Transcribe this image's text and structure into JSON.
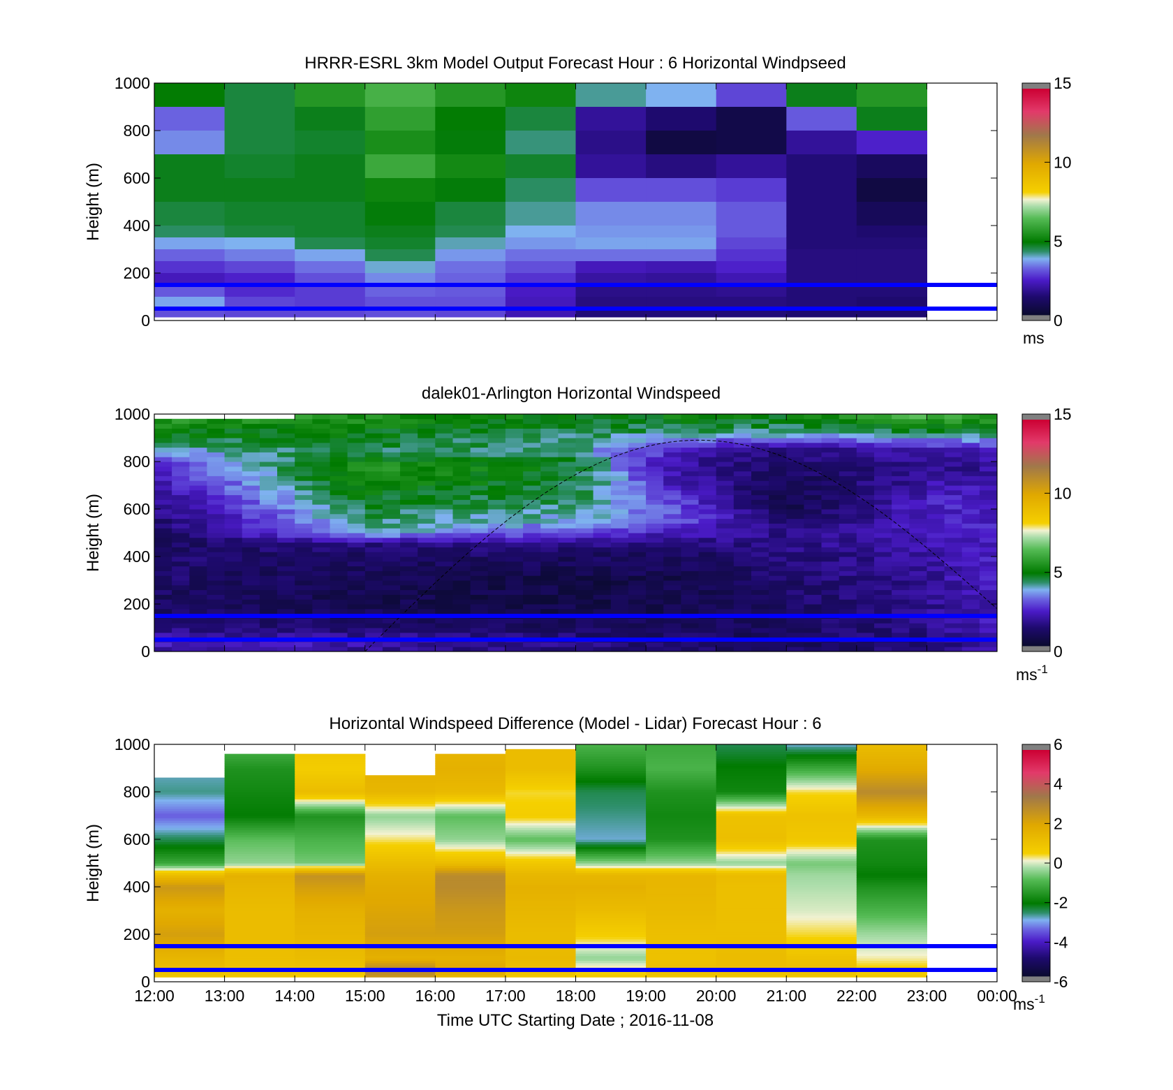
{
  "figure": {
    "xlabel": "Time UTC  Starting Date ; 2016-11-08",
    "xticks": [
      "12:00",
      "13:00",
      "14:00",
      "15:00",
      "16:00",
      "17:00",
      "18:00",
      "19:00",
      "20:00",
      "21:00",
      "22:00",
      "23:00",
      "00:00"
    ]
  },
  "chart_data": [
    {
      "type": "heatmap",
      "title": "HRRR-ESRL 3km Model Output   Forecast Hour : 6 Horizontal Windpseed",
      "ylabel": "Height (m)",
      "ylim": [
        0,
        1000
      ],
      "yticks": [
        "0",
        "200",
        "400",
        "600",
        "800",
        "1000"
      ],
      "colorbar": {
        "ticks": [
          "0",
          "5",
          "10",
          "15"
        ],
        "range": [
          0,
          15
        ],
        "unit": "ms"
      },
      "reference_lines_m": [
        150,
        50
      ],
      "x_hours": [
        12,
        13,
        14,
        15,
        16,
        17,
        18,
        19,
        20,
        21,
        22
      ],
      "height_bins_m": [
        1000,
        900,
        800,
        700,
        600,
        500,
        400,
        350,
        300,
        250,
        200,
        150,
        100,
        50
      ],
      "values": [
        [
          5.0,
          4.6,
          5.6,
          6.2,
          5.6,
          5.2,
          4.2,
          3.9,
          3.0,
          4.8,
          5.6
        ],
        [
          3.3,
          4.6,
          4.8,
          5.8,
          5.0,
          4.6,
          2.0,
          1.5,
          0.8,
          3.2,
          4.8
        ],
        [
          3.6,
          4.6,
          4.7,
          5.4,
          4.9,
          4.3,
          1.8,
          0.7,
          0.8,
          2.0,
          2.6
        ],
        [
          4.8,
          4.7,
          4.8,
          6.0,
          5.3,
          4.7,
          2.0,
          1.7,
          2.0,
          1.6,
          1.2
        ],
        [
          4.8,
          4.8,
          4.8,
          5.2,
          4.9,
          4.4,
          3.1,
          3.1,
          2.9,
          1.6,
          0.7
        ],
        [
          4.6,
          4.7,
          4.7,
          4.9,
          4.6,
          4.2,
          3.6,
          3.6,
          3.2,
          1.6,
          1.1
        ],
        [
          4.4,
          4.6,
          4.7,
          4.8,
          4.5,
          3.9,
          3.7,
          3.7,
          3.2,
          1.6,
          1.5
        ],
        [
          3.8,
          3.9,
          4.5,
          4.7,
          4.1,
          3.7,
          3.8,
          3.8,
          3.0,
          1.6,
          1.6
        ],
        [
          3.3,
          3.5,
          3.8,
          4.5,
          3.7,
          3.4,
          3.4,
          3.4,
          2.8,
          1.7,
          1.7
        ],
        [
          2.8,
          3.0,
          3.4,
          4.0,
          3.4,
          3.1,
          2.4,
          2.3,
          2.6,
          1.7,
          1.7
        ],
        [
          2.4,
          2.6,
          3.1,
          3.6,
          3.3,
          2.8,
          2.1,
          2.0,
          2.3,
          1.7,
          1.7
        ],
        [
          3.2,
          2.7,
          2.9,
          3.3,
          3.2,
          2.5,
          1.8,
          1.8,
          1.9,
          1.6,
          1.6
        ],
        [
          3.8,
          3.0,
          2.9,
          3.1,
          3.1,
          2.4,
          1.7,
          1.7,
          1.7,
          1.6,
          1.5
        ],
        [
          3.1,
          3.0,
          3.0,
          3.1,
          3.0,
          2.3,
          1.6,
          1.6,
          1.6,
          1.5,
          1.5
        ]
      ]
    },
    {
      "type": "heatmap",
      "title": "dalek01-Arlington  Horizontal Windspeed",
      "ylabel": "Height (m)",
      "ylim": [
        0,
        1000
      ],
      "yticks": [
        "0",
        "200",
        "400",
        "600",
        "800",
        "1000"
      ],
      "colorbar": {
        "ticks": [
          "0",
          "5",
          "10",
          "15"
        ],
        "range": [
          0,
          15
        ],
        "unit": "ms-1"
      },
      "reference_lines_m": [
        150,
        50
      ],
      "x_range_hours": [
        12,
        23.9
      ],
      "annotation_curve": {
        "start_x": 15.0,
        "peak_x": 19.75,
        "peak_y_m": 890,
        "end_x": 24.0,
        "end_y_m": 180
      },
      "profile_key_heights_m": [
        1000,
        930,
        850,
        780,
        700,
        620,
        560,
        500,
        450,
        400,
        300,
        200,
        100,
        40,
        0
      ],
      "profile_key_x": [
        12,
        15,
        18,
        19.5,
        21,
        23,
        24
      ],
      "profile_key_values": [
        [
          6.0,
          5.0,
          4.0,
          2.6,
          2.2,
          1.8,
          1.5,
          1.2,
          1.3,
          1.5,
          1.4,
          1.2,
          1.8,
          2.5,
          2.0
        ],
        [
          5.5,
          5.0,
          4.4,
          5.6,
          5.2,
          4.7,
          4.4,
          4.0,
          1.6,
          1.3,
          1.0,
          0.9,
          1.4,
          2.3,
          2.0
        ],
        [
          5.0,
          4.5,
          4.2,
          4.8,
          4.6,
          4.3,
          3.9,
          3.0,
          1.7,
          1.2,
          0.8,
          0.8,
          1.2,
          1.8,
          1.6
        ],
        [
          5.2,
          4.4,
          2.4,
          2.0,
          2.3,
          3.0,
          3.2,
          2.4,
          1.6,
          1.2,
          0.9,
          1.0,
          1.2,
          1.4,
          1.4
        ],
        [
          5.0,
          4.4,
          1.7,
          1.3,
          1.0,
          0.8,
          1.2,
          1.8,
          1.8,
          1.6,
          1.4,
          1.3,
          1.2,
          1.2,
          1.2
        ],
        [
          6.5,
          4.6,
          2.3,
          1.8,
          2.2,
          2.6,
          2.4,
          2.4,
          2.2,
          2.1,
          2.0,
          1.9,
          1.8,
          1.6,
          1.6
        ],
        [
          5.8,
          4.6,
          2.6,
          2.0,
          2.4,
          2.6,
          2.6,
          2.5,
          2.5,
          2.5,
          2.5,
          2.4,
          2.4,
          2.2,
          2.2
        ]
      ]
    },
    {
      "type": "heatmap",
      "title": "Horizontal Windspeed Difference (Model - Lidar) Forecast Hour : 6",
      "ylabel": "Height (m)",
      "ylim": [
        0,
        1000
      ],
      "yticks": [
        "0",
        "200",
        "400",
        "600",
        "800",
        "1000"
      ],
      "colorbar": {
        "ticks": [
          "-6",
          "-4",
          "-2",
          "0",
          "2",
          "4",
          "6"
        ],
        "range": [
          -6,
          6
        ],
        "unit": "ms-1"
      },
      "reference_lines_m": [
        150,
        50
      ],
      "x_hours": [
        12,
        13,
        14,
        15,
        16,
        17,
        18,
        19,
        20,
        21,
        22
      ],
      "column_top_m": [
        860,
        960,
        960,
        870,
        960,
        980,
        1000,
        1000,
        1000,
        1000,
        1000
      ],
      "profile_heights_m": [
        1000,
        900,
        800,
        700,
        600,
        500,
        450,
        400,
        300,
        200,
        100,
        50,
        20
      ],
      "profiles": [
        [
          -2.8,
          -2.8,
          -2.6,
          -3.4,
          -2.4,
          -1.2,
          1.2,
          2.4,
          1.6,
          2.2,
          1.4,
          1.2,
          0.8
        ],
        [
          -0.9,
          -1.6,
          -1.8,
          -2.0,
          -0.8,
          -0.4,
          1.6,
          1.4,
          1.2,
          1.2,
          1.1,
          1.0,
          0.8
        ],
        [
          0.9,
          0.6,
          1.2,
          -1.6,
          -1.0,
          -0.6,
          2.6,
          2.2,
          1.6,
          1.4,
          1.2,
          1.0,
          0.6
        ],
        [
          1.6,
          1.6,
          1.4,
          -0.4,
          0.3,
          1.2,
          1.6,
          1.8,
          2.0,
          2.2,
          1.6,
          3.0,
          2.4
        ],
        [
          1.4,
          1.6,
          1.3,
          -0.8,
          -0.4,
          1.2,
          2.8,
          2.8,
          2.4,
          2.2,
          1.6,
          2.0,
          1.4
        ],
        [
          1.2,
          1.2,
          0.4,
          0.6,
          -0.8,
          0.8,
          1.4,
          1.6,
          1.4,
          1.2,
          1.3,
          1.1,
          0.8
        ],
        [
          -1.0,
          -1.6,
          -2.4,
          -2.6,
          -2.8,
          -0.4,
          1.4,
          1.6,
          1.2,
          0.6,
          -0.4,
          0.4,
          0.8
        ],
        [
          -1.2,
          -1.0,
          -1.6,
          -1.8,
          -1.6,
          -0.4,
          1.4,
          1.4,
          1.3,
          1.1,
          1.0,
          1.2,
          0.8
        ],
        [
          -2.4,
          -2.0,
          -1.8,
          1.0,
          1.1,
          -0.4,
          1.2,
          1.1,
          1.1,
          1.1,
          1.2,
          1.2,
          0.8
        ],
        [
          -2.8,
          -1.2,
          0.4,
          1.0,
          0.8,
          -0.6,
          -0.3,
          -0.2,
          0.0,
          0.4,
          1.0,
          1.2,
          0.8
        ],
        [
          1.2,
          1.8,
          2.8,
          1.4,
          -1.6,
          -1.8,
          -2.0,
          -1.6,
          -1.0,
          -0.3,
          0.2,
          0.6,
          0.8
        ]
      ]
    }
  ]
}
